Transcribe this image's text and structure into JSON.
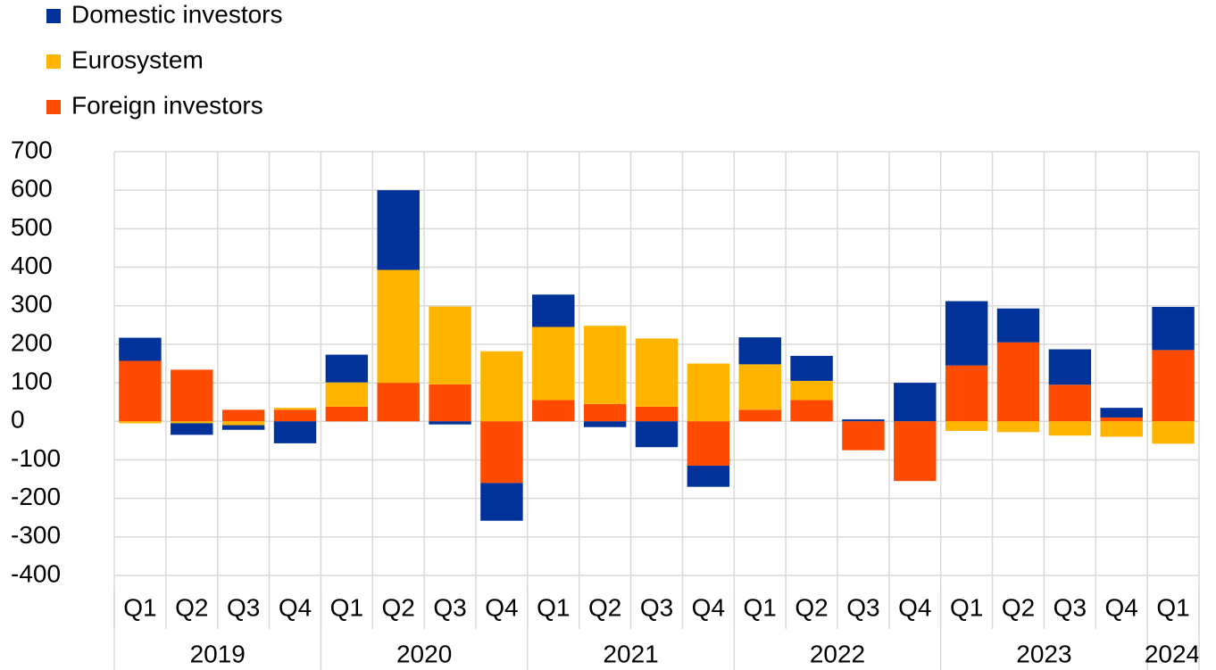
{
  "chart_data": {
    "type": "stacked_bar",
    "categories": [
      "Q1",
      "Q2",
      "Q3",
      "Q4",
      "Q1",
      "Q2",
      "Q3",
      "Q4",
      "Q1",
      "Q2",
      "Q3",
      "Q4",
      "Q1",
      "Q2",
      "Q3",
      "Q4",
      "Q1",
      "Q2",
      "Q3",
      "Q4",
      "Q1"
    ],
    "years": [
      "2019",
      "2020",
      "2021",
      "2022",
      "2023",
      "2024"
    ],
    "series": [
      {
        "name": "Domestic investors",
        "color": "#003299",
        "values": [
          60,
          -30,
          -12,
          -57,
          72,
          207,
          -8,
          -98,
          84,
          -15,
          -67,
          -55,
          70,
          65,
          5,
          100,
          167,
          88,
          92,
          25,
          112
        ]
      },
      {
        "name": "Eurosystem",
        "color": "#ffb400",
        "values": [
          -5,
          -5,
          -10,
          5,
          63,
          293,
          202,
          182,
          190,
          203,
          177,
          150,
          118,
          50,
          0,
          0,
          -25,
          -28,
          -37,
          -40,
          -58
        ]
      },
      {
        "name": "Foreign investors",
        "color": "#ff4b00",
        "values": [
          157,
          134,
          30,
          30,
          38,
          100,
          96,
          -160,
          55,
          45,
          38,
          -115,
          30,
          55,
          -75,
          -155,
          145,
          205,
          95,
          10,
          185
        ]
      }
    ],
    "ylim": [
      -400,
      700
    ],
    "yticks": [
      -400,
      -300,
      -200,
      -100,
      0,
      100,
      200,
      300,
      400,
      500,
      600,
      700
    ],
    "grid": true
  }
}
